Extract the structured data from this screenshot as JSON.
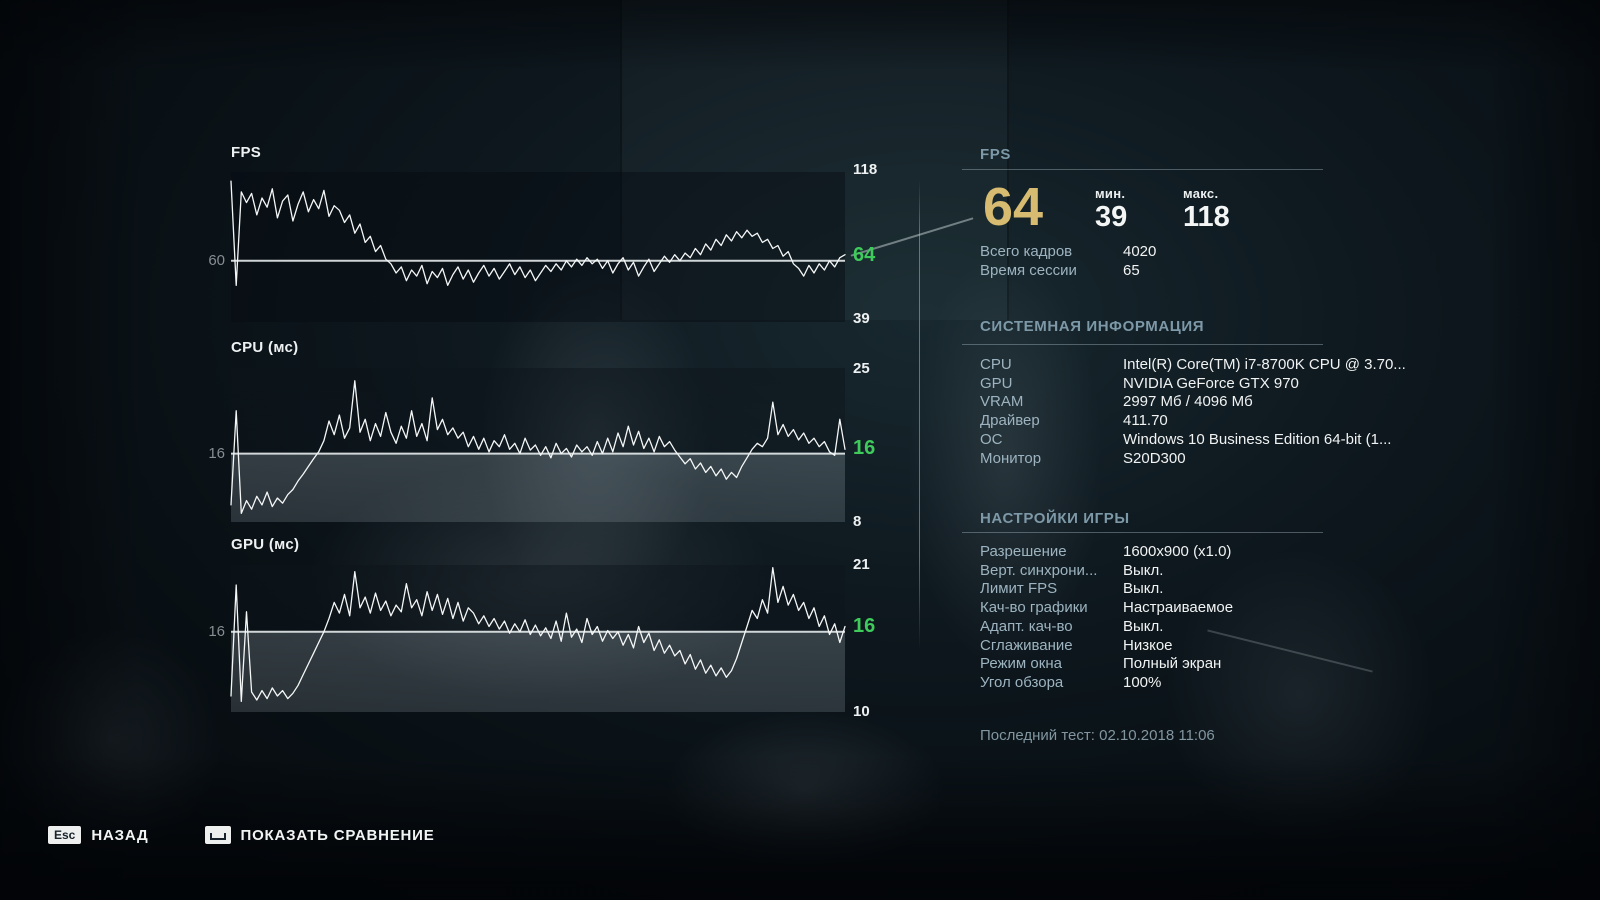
{
  "colors": {
    "accent_green": "#3ecb5b",
    "accent_gold": "#d6bb70",
    "label_blue": "#9db4c0",
    "header_blue": "#7d99a8",
    "line_white": "#f5f7f7"
  },
  "chart_data": [
    {
      "id": "fps",
      "type": "line",
      "title": "FPS",
      "ylabel": "FPS",
      "ylim": [
        20,
        118
      ],
      "ref_value": 60,
      "left_axis_label": "60",
      "max_label": "118",
      "current_label": "64",
      "min_label": "39",
      "values": [
        112,
        44,
        105,
        98,
        104,
        90,
        101,
        95,
        107,
        88,
        99,
        103,
        86,
        97,
        105,
        92,
        100,
        94,
        106,
        89,
        96,
        93,
        85,
        90,
        78,
        84,
        72,
        76,
        66,
        70,
        61,
        58,
        52,
        56,
        47,
        54,
        50,
        57,
        45,
        53,
        49,
        55,
        44,
        51,
        56,
        48,
        54,
        46,
        52,
        57,
        50,
        55,
        48,
        53,
        58,
        51,
        56,
        49,
        54,
        47,
        52,
        57,
        53,
        58,
        54,
        60,
        56,
        61,
        57,
        62,
        58,
        61,
        55,
        60,
        52,
        58,
        62,
        54,
        59,
        50,
        56,
        61,
        53,
        58,
        63,
        59,
        64,
        60,
        65,
        62,
        68,
        64,
        71,
        67,
        74,
        70,
        77,
        73,
        79,
        75,
        80,
        76,
        78,
        72,
        74,
        68,
        70,
        63,
        66,
        58,
        55,
        50,
        57,
        52,
        58,
        54,
        60,
        56,
        62,
        64
      ]
    },
    {
      "id": "cpu",
      "type": "line",
      "title": "CPU (мс)",
      "ylabel": "CPU ms",
      "ylim": [
        8,
        26
      ],
      "ref_value": 16,
      "left_axis_label": "16",
      "max_label": "25",
      "current_label": "16",
      "min_label": "8",
      "values": [
        10,
        21,
        9,
        10.5,
        9.5,
        11,
        10,
        11.5,
        9.8,
        10.8,
        10.2,
        11.2,
        11.8,
        12.8,
        13.6,
        14.5,
        15.4,
        16.2,
        17.5,
        19.8,
        18.2,
        20.5,
        17.8,
        19,
        24.5,
        18.5,
        20,
        17.5,
        19.5,
        18,
        20.8,
        18.5,
        17.2,
        19.2,
        17.8,
        21,
        18,
        19.5,
        17.5,
        22.5,
        18.8,
        20,
        18.2,
        19,
        17.8,
        18.5,
        16.8,
        18,
        16.5,
        17.8,
        16.2,
        17.5,
        16.8,
        18.2,
        16.5,
        17.2,
        16,
        17.8,
        16.4,
        17,
        15.8,
        16.8,
        15.5,
        17.2,
        16,
        16.6,
        15.6,
        17,
        16.2,
        16.8,
        15.8,
        17.4,
        16,
        17.8,
        16.2,
        18.4,
        16.8,
        19.2,
        17,
        18.6,
        16.6,
        17.8,
        16.2,
        18,
        16.8,
        17.4,
        16.4,
        15.6,
        14.8,
        15.4,
        14.2,
        14.9,
        13.8,
        14.5,
        13.4,
        14.2,
        13,
        13.8,
        13.2,
        14.5,
        15.5,
        16.5,
        17.2,
        16.8,
        17.8,
        22,
        18.2,
        19.4,
        18,
        18.8,
        17.6,
        18.4,
        17.2,
        17.8,
        16.8,
        17.4,
        16.2,
        15.8,
        20,
        16.5
      ]
    },
    {
      "id": "gpu",
      "type": "line",
      "title": "GPU (мс)",
      "ylabel": "GPU ms",
      "ylim": [
        10,
        21
      ],
      "ref_value": 16,
      "left_axis_label": "16",
      "max_label": "21",
      "current_label": "16",
      "min_label": "10",
      "values": [
        11.2,
        19.5,
        10.8,
        17.5,
        11.5,
        10.9,
        11.6,
        11,
        11.8,
        11.2,
        11.6,
        11,
        11.4,
        12,
        12.8,
        13.6,
        14.4,
        15.2,
        16,
        17,
        18.2,
        17.4,
        18.8,
        17.2,
        20.5,
        17.8,
        18.6,
        17.4,
        18.9,
        17.6,
        18.3,
        17.2,
        18,
        17.5,
        19.6,
        17.8,
        18.4,
        17.2,
        19,
        17.6,
        18.8,
        17.3,
        18.5,
        17,
        18.2,
        16.8,
        17.8,
        17.4,
        16.6,
        17.2,
        16.4,
        17,
        16.2,
        16.8,
        15.9,
        16.6,
        16,
        16.9,
        15.8,
        16.5,
        15.7,
        16.3,
        15.5,
        16.8,
        15.3,
        17.4,
        15.6,
        16.2,
        15.2,
        17,
        15.8,
        16.4,
        15.3,
        16.1,
        15.5,
        16,
        15,
        15.8,
        14.8,
        16.4,
        15.2,
        15.9,
        14.6,
        15.4,
        14.4,
        15,
        14.2,
        14.6,
        13.6,
        14.3,
        13.2,
        13.9,
        12.9,
        13.5,
        12.7,
        13.3,
        12.6,
        13.1,
        14,
        15.2,
        16.4,
        17.6,
        17,
        18.4,
        17.4,
        20.8,
        18.2,
        19.4,
        18,
        18.8,
        17.6,
        18.2,
        17,
        17.8,
        16.4,
        17.2,
        15.8,
        16.6,
        15.2,
        16.4
      ]
    }
  ],
  "fps_summary": {
    "section_title": "FPS",
    "average": "64",
    "min_label": "мин.",
    "min_value": "39",
    "max_label": "макс.",
    "max_value": "118",
    "rows": [
      {
        "label": "Всего кадров",
        "value": "4020"
      },
      {
        "label": "Время сессии",
        "value": "65"
      }
    ]
  },
  "system_info": {
    "section_title": "СИСТЕМНАЯ ИНФОРМАЦИЯ",
    "rows": [
      {
        "label": "CPU",
        "value": "Intel(R) Core(TM) i7-8700K CPU @ 3.70..."
      },
      {
        "label": "GPU",
        "value": "NVIDIA GeForce GTX 970"
      },
      {
        "label": "VRAM",
        "value": "2997 Мб / 4096 Мб"
      },
      {
        "label": "Драйвер",
        "value": "411.70"
      },
      {
        "label": "ОС",
        "value": "Windows 10 Business Edition 64-bit (1..."
      },
      {
        "label": "Монитор",
        "value": "S20D300"
      }
    ]
  },
  "game_settings": {
    "section_title": "НАСТРОЙКИ ИГРЫ",
    "rows": [
      {
        "label": "Разрешение",
        "value": "1600x900 (x1.0)"
      },
      {
        "label": "Верт. синхрони...",
        "value": "Выкл."
      },
      {
        "label": "Лимит FPS",
        "value": "Выкл."
      },
      {
        "label": "Кач-во графики",
        "value": "Настраиваемое"
      },
      {
        "label": "Адапт. кач-во",
        "value": "Выкл."
      },
      {
        "label": "Сглаживание",
        "value": "Низкое"
      },
      {
        "label": "Режим окна",
        "value": "Полный экран"
      },
      {
        "label": "Угол обзора",
        "value": "100%"
      }
    ]
  },
  "last_test": "Последний тест: 02.10.2018 11:06",
  "footer": {
    "back_key": "Esc",
    "back_label": "НАЗАД",
    "compare_label": "ПОКАЗАТЬ СРАВНЕНИЕ"
  }
}
